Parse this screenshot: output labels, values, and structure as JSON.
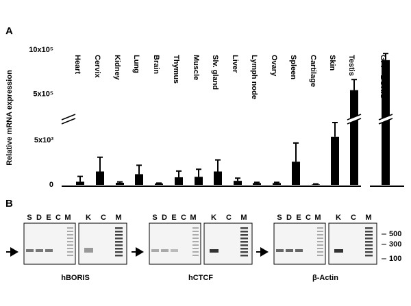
{
  "chart_data": {
    "type": "bar",
    "panel_label": "A",
    "y_label": "Relative mRNA expression",
    "categories": [
      "Heart",
      "Cervix",
      "Kidney",
      "Lung",
      "Brain",
      "Thymus",
      "Muscle",
      "Slv. gland",
      "Liver",
      "Lymph  node",
      "Ovary",
      "Spleen",
      "Cartilage",
      "Skin",
      "Testis",
      "GFP- BORIS"
    ],
    "values": [
      350,
      1500,
      230,
      1200,
      150,
      850,
      900,
      1500,
      450,
      200,
      200,
      2600,
      50,
      5400,
      546000,
      885000
    ],
    "errors": [
      600,
      1600,
      100,
      1000,
      50,
      700,
      850,
      1300,
      300,
      80,
      80,
      2100,
      50,
      1600,
      120000,
      75000
    ],
    "color": "#000000",
    "ylim": [
      0,
      1000000
    ],
    "y_break": [
      7000,
      250000
    ],
    "yticks": [
      0,
      {
        "value": 5000,
        "label": "5x10³"
      },
      {
        "value": 500000,
        "label": "5x10⁵"
      },
      {
        "value": 1000000,
        "label": "10x10⁵"
      }
    ]
  },
  "gel_panel": {
    "panel_label": "B",
    "gels": [
      {
        "name": "hBORIS",
        "lanes_left": [
          "S",
          "D",
          "E",
          "C",
          "M"
        ],
        "lanes_right": [
          "K",
          "C",
          "M"
        ]
      },
      {
        "name": "hCTCF",
        "lanes_left": [
          "S",
          "D",
          "E",
          "C",
          "M"
        ],
        "lanes_right": [
          "K",
          "C",
          "M"
        ]
      },
      {
        "name": "β-Actin",
        "lanes_left": [
          "S",
          "D",
          "E",
          "C",
          "M"
        ],
        "lanes_right": [
          "K",
          "C",
          "M"
        ]
      }
    ],
    "size_markers": [
      500,
      300,
      100
    ]
  }
}
